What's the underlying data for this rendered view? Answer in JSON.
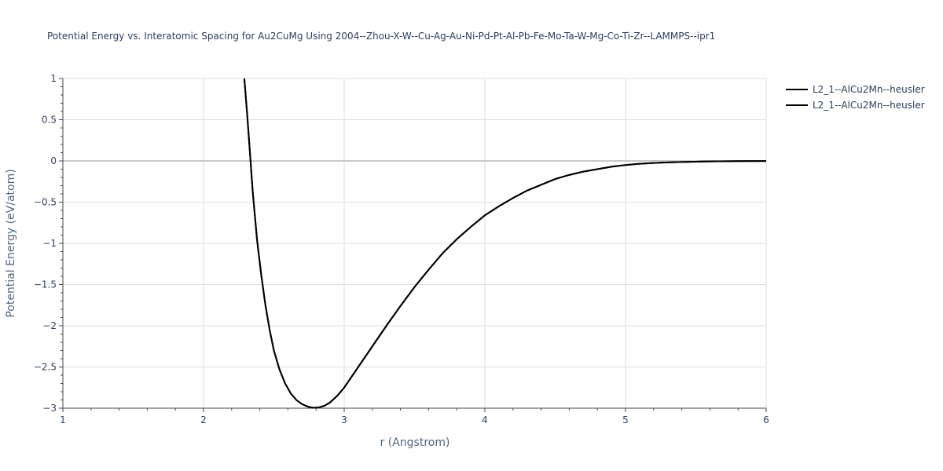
{
  "chart_data": {
    "type": "line",
    "title": "Potential Energy vs. Interatomic Spacing for Au2CuMg Using 2004--Zhou-X-W--Cu-Ag-Au-Ni-Pd-Pt-Al-Pb-Fe-Mo-Ta-W-Mg-Co-Ti-Zr--LAMMPS--ipr1",
    "xlabel": "r (Angstrom)",
    "ylabel": "Potential Energy (eV/atom)",
    "xlim": [
      1,
      6
    ],
    "ylim": [
      -3,
      1
    ],
    "xticks": [
      "1",
      "2",
      "3",
      "4",
      "5",
      "6"
    ],
    "yticks": [
      "1",
      "0.5",
      "0",
      "−0.5",
      "−1",
      "−1.5",
      "−2",
      "−2.5",
      "−3"
    ],
    "grid": true,
    "legend_position": "top-right",
    "series": [
      {
        "name": "L2_1--AlCu2Mn--heusler",
        "color": "#000000",
        "x": [
          2.29,
          2.31,
          2.33,
          2.35,
          2.38,
          2.41,
          2.44,
          2.47,
          2.5,
          2.54,
          2.58,
          2.62,
          2.66,
          2.7,
          2.74,
          2.78,
          2.82,
          2.86,
          2.9,
          2.95,
          3.0,
          3.1,
          3.2,
          3.3,
          3.4,
          3.5,
          3.6,
          3.7,
          3.8,
          3.9,
          4.0,
          4.1,
          4.2,
          4.3,
          4.4,
          4.5,
          4.6,
          4.7,
          4.8,
          4.9,
          5.0,
          5.1,
          5.2,
          5.3,
          5.4,
          5.5,
          5.6,
          5.8,
          6.0
        ],
        "y": [
          1.0,
          0.57,
          0.1,
          -0.38,
          -0.95,
          -1.38,
          -1.75,
          -2.05,
          -2.3,
          -2.53,
          -2.7,
          -2.82,
          -2.9,
          -2.95,
          -2.98,
          -2.995,
          -2.99,
          -2.97,
          -2.93,
          -2.85,
          -2.75,
          -2.5,
          -2.25,
          -2.0,
          -1.76,
          -1.53,
          -1.32,
          -1.12,
          -0.95,
          -0.8,
          -0.66,
          -0.55,
          -0.45,
          -0.36,
          -0.29,
          -0.22,
          -0.17,
          -0.13,
          -0.1,
          -0.07,
          -0.05,
          -0.035,
          -0.025,
          -0.018,
          -0.013,
          -0.009,
          -0.006,
          -0.003,
          -0.001
        ]
      },
      {
        "name": "L2_1--AlCu2Mn--heusler",
        "color": "#000000",
        "x": [
          2.29,
          2.31,
          2.33,
          2.35,
          2.38,
          2.41,
          2.44,
          2.47,
          2.5,
          2.54,
          2.58,
          2.62,
          2.66,
          2.7,
          2.74,
          2.78,
          2.82,
          2.86,
          2.9,
          2.95,
          3.0,
          3.1,
          3.2,
          3.3,
          3.4,
          3.5,
          3.6,
          3.7,
          3.8,
          3.9,
          4.0,
          4.1,
          4.2,
          4.3,
          4.4,
          4.5,
          4.6,
          4.7,
          4.8,
          4.9,
          5.0,
          5.1,
          5.2,
          5.3,
          5.4,
          5.5,
          5.6,
          5.8,
          6.0
        ],
        "y": [
          1.0,
          0.57,
          0.1,
          -0.38,
          -0.95,
          -1.38,
          -1.75,
          -2.05,
          -2.3,
          -2.53,
          -2.7,
          -2.82,
          -2.9,
          -2.95,
          -2.98,
          -2.995,
          -2.99,
          -2.97,
          -2.93,
          -2.85,
          -2.75,
          -2.5,
          -2.25,
          -2.0,
          -1.76,
          -1.53,
          -1.32,
          -1.12,
          -0.95,
          -0.8,
          -0.66,
          -0.55,
          -0.45,
          -0.36,
          -0.29,
          -0.22,
          -0.17,
          -0.13,
          -0.1,
          -0.07,
          -0.05,
          -0.035,
          -0.025,
          -0.018,
          -0.013,
          -0.009,
          -0.006,
          -0.003,
          -0.001
        ]
      }
    ]
  }
}
